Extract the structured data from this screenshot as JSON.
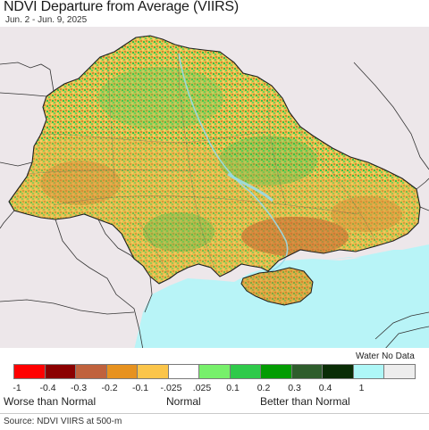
{
  "title": "NDVI Departure from Average (VIIRS)",
  "subtitle": "Jun. 2 - Jun. 9, 2025",
  "colors": {
    "background_land": "#ede7ea",
    "sea": "#b8f4f7",
    "border": "#222222"
  },
  "legend": {
    "nodata_label": "Water No Data",
    "bins": [
      {
        "color": "#ff0000"
      },
      {
        "color": "#8b0000"
      },
      {
        "color": "#c0623d"
      },
      {
        "color": "#e7921f"
      },
      {
        "color": "#fbc54a"
      },
      {
        "color": "#ffffff"
      },
      {
        "color": "#77f06b"
      },
      {
        "color": "#2fca4a"
      },
      {
        "color": "#039c03"
      },
      {
        "color": "#2e5d2c"
      },
      {
        "color": "#0a2d06"
      },
      {
        "color": "#aef7f7"
      },
      {
        "color": "#ededed"
      }
    ],
    "ticks": [
      "-1",
      "-0.4",
      "-0.3",
      "-0.2",
      "-0.1",
      "-.025",
      ".025",
      "0.1",
      "0.2",
      "0.3",
      "0.4",
      "1"
    ],
    "categories": {
      "worse": "Worse than Normal",
      "normal": "Normal",
      "better": "Better than Normal"
    }
  },
  "source": "Source: NDVI VIIRS at 500-m"
}
